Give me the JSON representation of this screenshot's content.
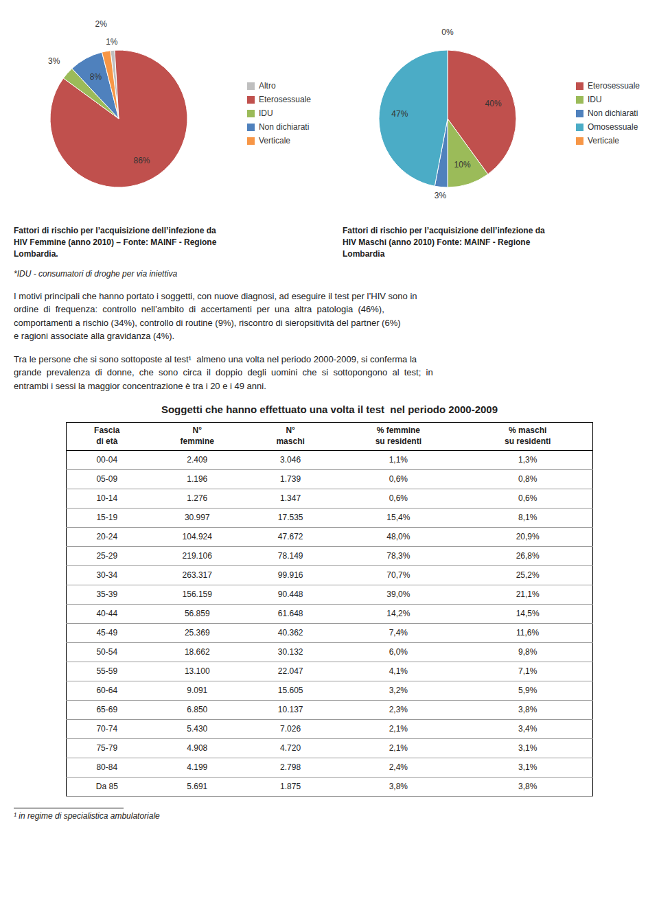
{
  "chart_data": [
    {
      "type": "pie",
      "title": "Fattori di rischio per l’acquisizione dell’infezione da\nHIV Femmine (anno 2010) – Fonte: MAINF - Regione\nLombardia.",
      "categories": [
        "Altro",
        "Eterosessuale",
        "IDU",
        "Non dichiarati",
        "Verticale"
      ],
      "values": [
        1,
        86,
        3,
        8,
        2
      ],
      "value_labels": [
        "1%",
        "86%",
        "3%",
        "8%",
        "2%"
      ],
      "colors": [
        "#bfbfbf",
        "#c0504d",
        "#9bbb59",
        "#4f81bd",
        "#f79646"
      ],
      "data_labels": true,
      "legend": "right"
    },
    {
      "type": "pie",
      "title": "Fattori di rischio per l’acquisizione dell’infezione da\nHIV Maschi (anno 2010) Fonte: MAINF - Regione\nLombardia",
      "categories": [
        "Eterosessuale",
        "IDU",
        "Non dichiarati",
        "Omosessuale",
        "Verticale"
      ],
      "values": [
        40,
        10,
        3,
        47,
        0
      ],
      "value_labels": [
        "40%",
        "10%",
        "3%",
        "47%",
        "0%"
      ],
      "colors": [
        "#c0504d",
        "#9bbb59",
        "#4f81bd",
        "#4bacc6",
        "#f79646"
      ],
      "data_labels": true,
      "legend": "right"
    },
    {
      "type": "text",
      "annotations": [
        "*IDU - consumatori di droghe per via iniettiva",
        "I motivi principali che hanno portato i soggetti, con nuove diagnosi, ad eseguire il test per l’HIV sono in\nordine  di  frequenza:  controllo  nell’ambito  di  accertamenti  per  una  altra  patologia  (46%),\ncomportamenti a rischio (34%), controllo di routine (9%), riscontro di sieropsitività del partner (6%)\ne ragioni associate alla gravidanza (4%).",
        "Tra le persone che si sono sottoposte al test¹  almeno una volta nel periodo 2000-2009, si conferma la\ngrande  prevalenza  di  donne,  che  sono  circa  il  doppio  degli  uomini  che  si  sottopongono  al  test;  in\nentrambi i sessi la maggior concentrazione è tra i 20 e i 49 anni."
      ]
    },
    {
      "type": "table",
      "title": "Soggetti che hanno effettuato una volta il test  nel periodo 2000-2009",
      "headers": [
        "Fascia\ndi età",
        "N°\nfemmine",
        "N°\nmaschi",
        "% femmine\nsu residenti",
        "% maschi\nsu residenti"
      ],
      "rows": [
        [
          "00-04",
          "2.409",
          "3.046",
          "1,1%",
          "1,3%"
        ],
        [
          "05-09",
          "1.196",
          "1.739",
          "0,6%",
          "0,8%"
        ],
        [
          "10-14",
          "1.276",
          "1.347",
          "0,6%",
          "0,6%"
        ],
        [
          "15-19",
          "30.997",
          "17.535",
          "15,4%",
          "8,1%"
        ],
        [
          "20-24",
          "104.924",
          "47.672",
          "48,0%",
          "20,9%"
        ],
        [
          "25-29",
          "219.106",
          "78.149",
          "78,3%",
          "26,8%"
        ],
        [
          "30-34",
          "263.317",
          "99.916",
          "70,7%",
          "25,2%"
        ],
        [
          "35-39",
          "156.159",
          "90.448",
          "39,0%",
          "21,1%"
        ],
        [
          "40-44",
          "56.859",
          "61.648",
          "14,2%",
          "14,5%"
        ],
        [
          "45-49",
          "25.369",
          "40.362",
          "7,4%",
          "11,6%"
        ],
        [
          "50-54",
          "18.662",
          "30.132",
          "6,0%",
          "9,8%"
        ],
        [
          "55-59",
          "13.100",
          "22.047",
          "4,1%",
          "7,1%"
        ],
        [
          "60-64",
          "9.091",
          "15.605",
          "3,2%",
          "5,9%"
        ],
        [
          "65-69",
          "6.850",
          "10.137",
          "2,3%",
          "3,8%"
        ],
        [
          "70-74",
          "5.430",
          "7.026",
          "2,1%",
          "3,4%"
        ],
        [
          "75-79",
          "4.908",
          "4.720",
          "2,1%",
          "3,1%"
        ],
        [
          "80-84",
          "4.199",
          "2.798",
          "2,4%",
          "3,1%"
        ],
        [
          "Da 85",
          "5.691",
          "1.875",
          "3,8%",
          "3,8%"
        ]
      ],
      "annotations": [
        "¹ in regime di specialistica ambulatoriale"
      ]
    }
  ]
}
